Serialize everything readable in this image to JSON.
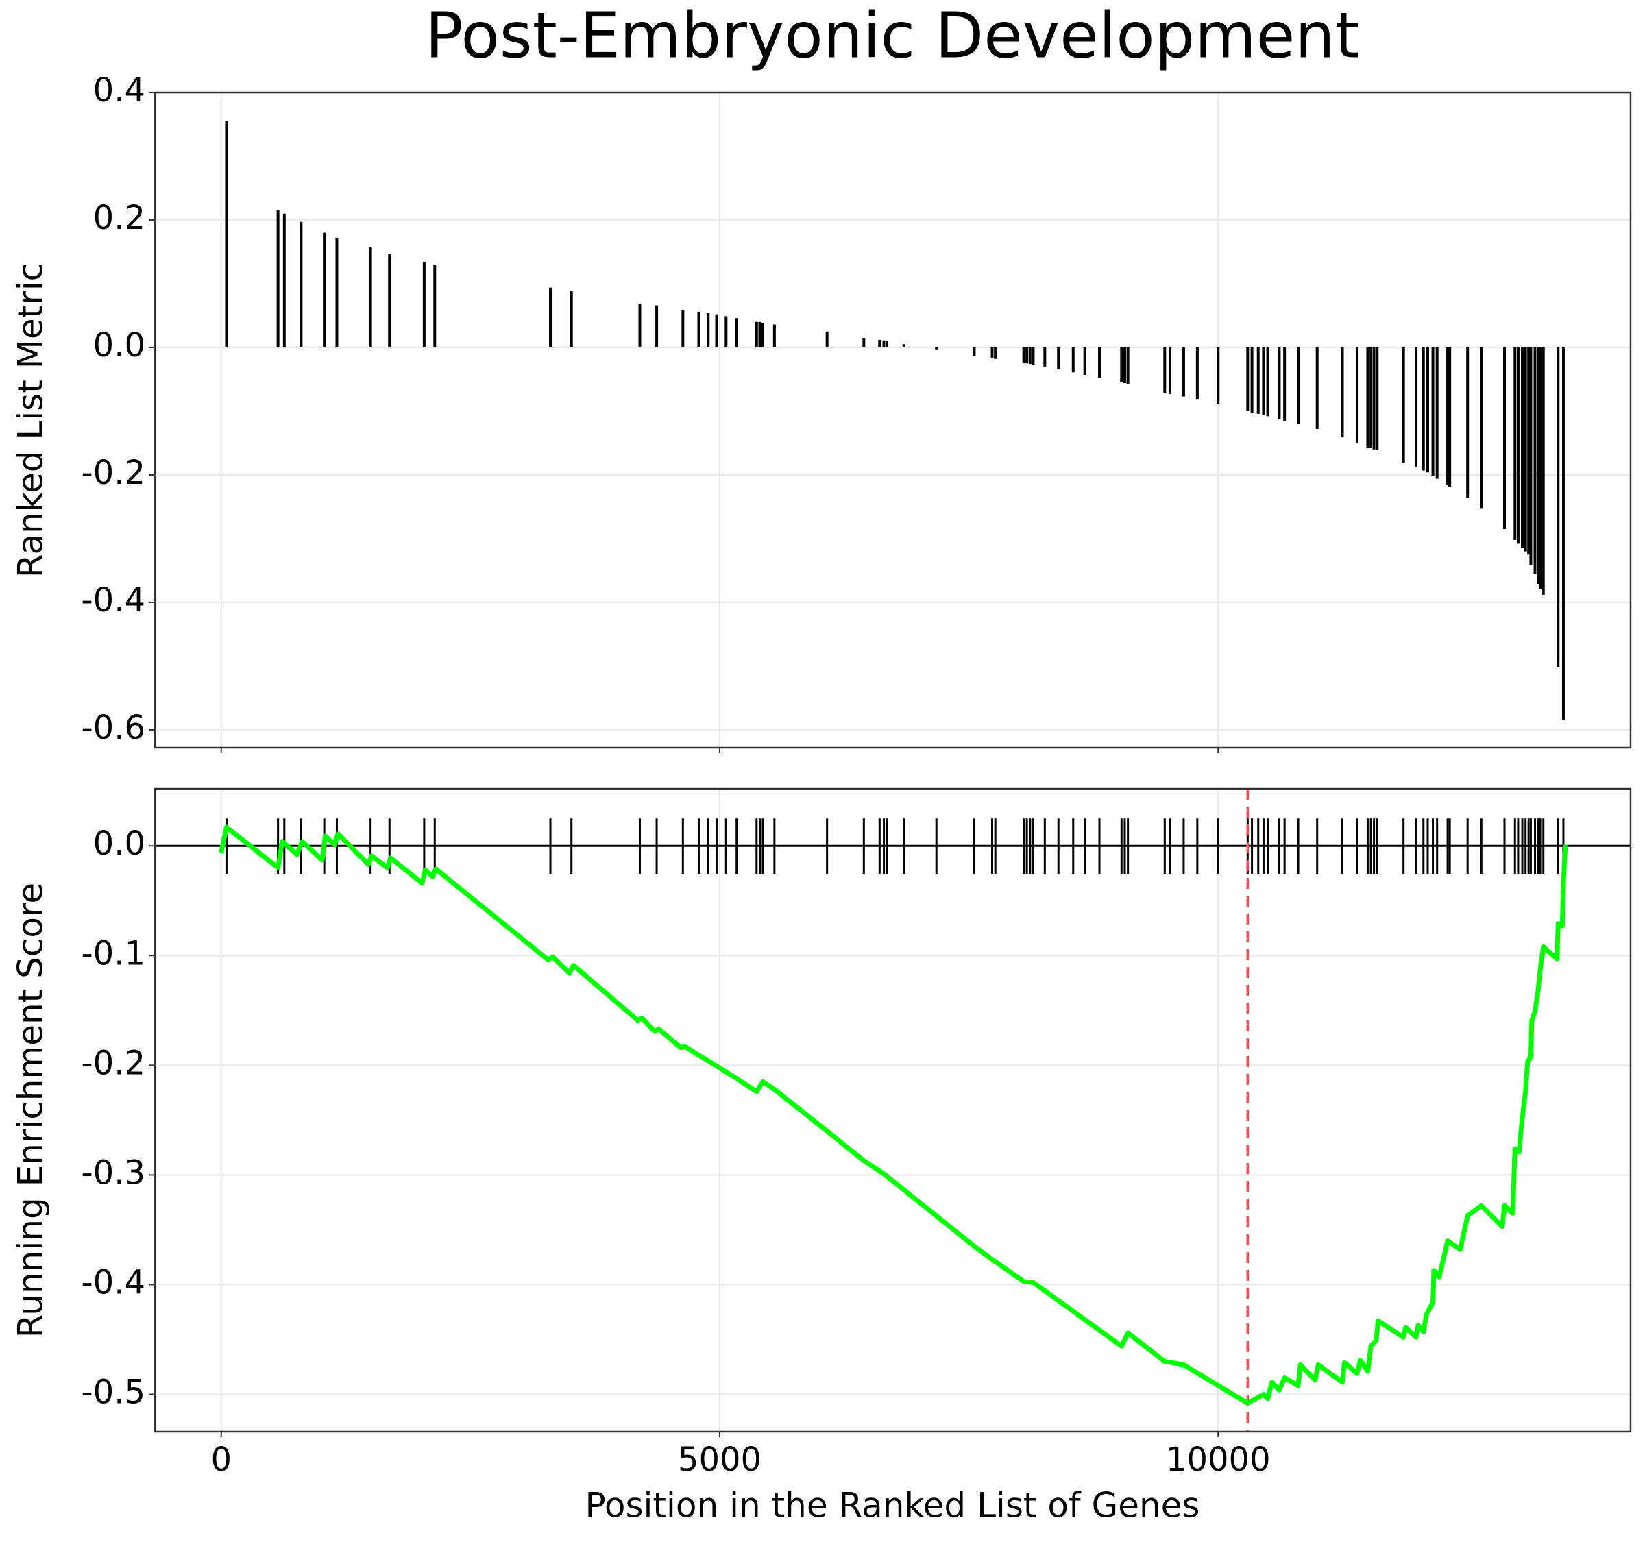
{
  "chart_data": [
    {
      "type": "bar",
      "title": "Post-Embryonic Development",
      "y_label": "Ranked List Metric",
      "color": "#000000",
      "x": [
        53,
        570,
        633,
        802,
        1034,
        1160,
        1498,
        1688,
        2036,
        2142,
        3302,
        3513,
        4199,
        4368,
        4631,
        4790,
        4885,
        4969,
        5064,
        5170,
        5370,
        5402,
        5433,
        5549,
        6077,
        6446,
        6604,
        6647,
        6678,
        6847,
        7174,
        7554,
        7733,
        7765,
        8050,
        8081,
        8113,
        8145,
        8261,
        8398,
        8546,
        8662,
        8809,
        9031,
        9063,
        9095,
        9464,
        9517,
        9654,
        9791,
        10000,
        10296,
        10339,
        10402,
        10455,
        10497,
        10613,
        10666,
        10803,
        10993,
        11246,
        11394,
        11500,
        11532,
        11563,
        11595,
        11859,
        11985,
        12059,
        12102,
        12154,
        12196,
        12302,
        12323,
        12502,
        12640,
        12872,
        12977,
        13009,
        13051,
        13083,
        13114,
        13136,
        13178,
        13209,
        13230,
        13262,
        13410,
        13463
      ],
      "values": [
        0.355,
        0.216,
        0.21,
        0.197,
        0.18,
        0.172,
        0.157,
        0.147,
        0.134,
        0.129,
        0.094,
        0.088,
        0.069,
        0.066,
        0.059,
        0.056,
        0.054,
        0.052,
        0.049,
        0.046,
        0.04,
        0.04,
        0.038,
        0.036,
        0.025,
        0.015,
        0.012,
        0.011,
        0.01,
        0.005,
        -0.003,
        -0.013,
        -0.016,
        -0.018,
        -0.024,
        -0.025,
        -0.026,
        -0.027,
        -0.03,
        -0.034,
        -0.039,
        -0.043,
        -0.048,
        -0.055,
        -0.056,
        -0.057,
        -0.071,
        -0.073,
        -0.077,
        -0.081,
        -0.089,
        -0.1,
        -0.102,
        -0.104,
        -0.106,
        -0.108,
        -0.112,
        -0.115,
        -0.12,
        -0.128,
        -0.141,
        -0.15,
        -0.157,
        -0.158,
        -0.16,
        -0.161,
        -0.181,
        -0.188,
        -0.193,
        -0.196,
        -0.201,
        -0.206,
        -0.216,
        -0.219,
        -0.236,
        -0.252,
        -0.285,
        -0.302,
        -0.308,
        -0.315,
        -0.32,
        -0.325,
        -0.341,
        -0.356,
        -0.371,
        -0.379,
        -0.388,
        -0.501,
        -0.584
      ],
      "xlim": [
        -665,
        14137
      ],
      "xticks": [
        0,
        5000,
        10000
      ],
      "ylim": [
        -0.628,
        0.4
      ],
      "yticks": [
        0.4,
        0.2,
        {
          "value": 0,
          "label": "0.0"
        },
        -0.2,
        -0.4,
        -0.6
      ],
      "grid": true
    },
    {
      "type": "line",
      "y_label": "Running Enrichment Score",
      "x_label": "Position in the Ranked List of Genes",
      "color": "#00ff00",
      "vline_color": "#e8534f",
      "x": [
        0,
        53,
        570,
        612,
        760,
        812,
        1013,
        1044,
        1139,
        1171,
        1477,
        1509,
        1667,
        1699,
        2015,
        2047,
        2121,
        2152,
        3281,
        3323,
        3492,
        3534,
        4178,
        4220,
        4347,
        4389,
        4610,
        4653,
        5170,
        5370,
        5433,
        5549,
        6077,
        6446,
        6647,
        7554,
        7733,
        8050,
        8145,
        9031,
        9095,
        9464,
        9654,
        10000,
        10296,
        10455,
        10497,
        10539,
        10613,
        10666,
        10803,
        10824,
        10972,
        11004,
        11246,
        11267,
        11394,
        11426,
        11500,
        11532,
        11584,
        11605,
        11859,
        11880,
        11985,
        12006,
        12059,
        12090,
        12154,
        12164,
        12217,
        12302,
        12428,
        12502,
        12640,
        12850,
        12872,
        12955,
        12977,
        13019,
        13040,
        13083,
        13104,
        13136,
        13146,
        13178,
        13209,
        13230,
        13262,
        13399,
        13410,
        13452,
        13463,
        13483
      ],
      "values": [
        -0.006,
        0.017,
        -0.02,
        0.004,
        -0.008,
        0.004,
        -0.013,
        0.009,
        0.001,
        0.011,
        -0.017,
        -0.009,
        -0.02,
        -0.011,
        -0.034,
        -0.022,
        -0.028,
        -0.021,
        -0.104,
        -0.101,
        -0.116,
        -0.109,
        -0.159,
        -0.157,
        -0.169,
        -0.167,
        -0.184,
        -0.183,
        -0.212,
        -0.224,
        -0.215,
        -0.222,
        -0.26,
        -0.287,
        -0.299,
        -0.365,
        -0.377,
        -0.397,
        -0.398,
        -0.456,
        -0.444,
        -0.47,
        -0.473,
        -0.492,
        -0.508,
        -0.5,
        -0.504,
        -0.489,
        -0.496,
        -0.485,
        -0.492,
        -0.473,
        -0.487,
        -0.473,
        -0.489,
        -0.471,
        -0.481,
        -0.469,
        -0.479,
        -0.456,
        -0.451,
        -0.433,
        -0.448,
        -0.439,
        -0.448,
        -0.437,
        -0.443,
        -0.427,
        -0.416,
        -0.387,
        -0.393,
        -0.36,
        -0.368,
        -0.337,
        -0.328,
        -0.347,
        -0.328,
        -0.335,
        -0.276,
        -0.279,
        -0.257,
        -0.224,
        -0.197,
        -0.192,
        -0.159,
        -0.151,
        -0.132,
        -0.113,
        -0.092,
        -0.103,
        -0.071,
        -0.073,
        -0.033,
        0.001
      ],
      "vline": 10296,
      "xlim": [
        -665,
        14137
      ],
      "xticks": [
        0,
        5000,
        10000
      ],
      "ylim": [
        -0.534,
        0.052
      ],
      "yticks": [
        {
          "value": 0,
          "label": "0.0"
        },
        -0.1,
        -0.2,
        -0.3,
        -0.4,
        -0.5
      ],
      "grid": true
    }
  ]
}
